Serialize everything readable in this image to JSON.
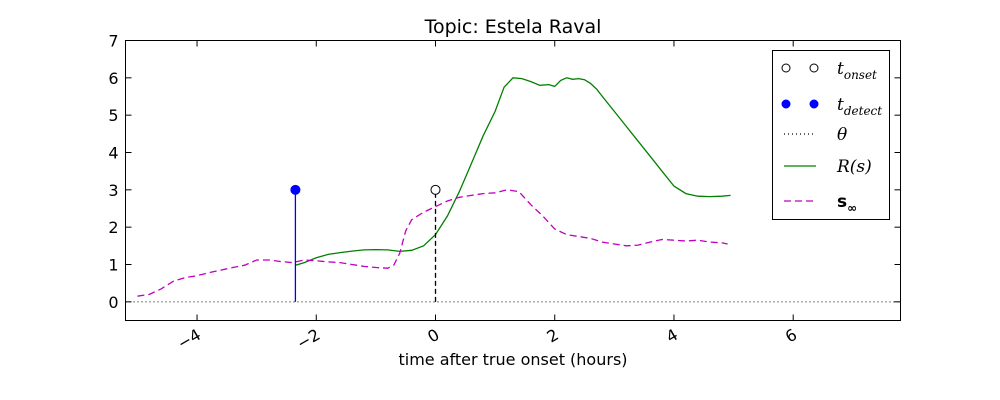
{
  "chart_data": {
    "type": "line",
    "title": "Topic: Estela Raval",
    "xlabel": "time after true onset (hours)",
    "ylabel": "",
    "xlim": [
      -5.2,
      7.8
    ],
    "ylim": [
      -0.5,
      7
    ],
    "xticks": [
      -4,
      -2,
      0,
      2,
      4,
      6
    ],
    "xtick_labels": [
      "−4",
      "−2",
      "0",
      "2",
      "4",
      "6"
    ],
    "yticks": [
      0,
      1,
      2,
      3,
      4,
      5,
      6,
      7
    ],
    "ytick_labels": [
      "0",
      "1",
      "2",
      "3",
      "4",
      "5",
      "6",
      "7"
    ],
    "grid": false,
    "legend_position": "upper-right",
    "legend": [
      {
        "key": "t_onset",
        "label": "t",
        "sub": "onset",
        "style": "open-circles"
      },
      {
        "key": "t_detect",
        "label": "t",
        "sub": "detect",
        "style": "filled-circles"
      },
      {
        "key": "theta",
        "label": "θ",
        "sub": "",
        "style": "dotted"
      },
      {
        "key": "R",
        "label": "R(s)",
        "sub": "",
        "style": "solid"
      },
      {
        "key": "s_inf",
        "label": "s",
        "sub": "∞",
        "style": "dashed"
      }
    ],
    "colors": {
      "t_onset": "#000000",
      "t_detect": "#0000ff",
      "theta": "#000000",
      "R": "#008000",
      "s_inf": "#bf00bf"
    },
    "threshold": 0,
    "t_onset": {
      "x": 0,
      "y": 3
    },
    "t_detect": {
      "x": -2.35,
      "y": 3
    },
    "series": [
      {
        "key": "R",
        "name": "R(s)",
        "x": [
          -2.35,
          -2.2,
          -2.0,
          -1.8,
          -1.6,
          -1.4,
          -1.2,
          -1.0,
          -0.8,
          -0.6,
          -0.4,
          -0.2,
          0.0,
          0.2,
          0.4,
          0.6,
          0.8,
          1.0,
          1.15,
          1.3,
          1.45,
          1.6,
          1.75,
          1.9,
          2.0,
          2.1,
          2.2,
          2.3,
          2.4,
          2.5,
          2.6,
          2.7,
          2.8,
          3.0,
          3.2,
          3.4,
          3.6,
          3.8,
          4.0,
          4.2,
          4.4,
          4.6,
          4.8,
          4.95
        ],
        "y": [
          0.98,
          1.05,
          1.18,
          1.27,
          1.32,
          1.36,
          1.39,
          1.4,
          1.39,
          1.35,
          1.38,
          1.5,
          1.8,
          2.3,
          2.95,
          3.7,
          4.45,
          5.1,
          5.75,
          6.0,
          5.98,
          5.9,
          5.8,
          5.82,
          5.77,
          5.93,
          6.0,
          5.96,
          5.98,
          5.95,
          5.85,
          5.7,
          5.5,
          5.1,
          4.7,
          4.3,
          3.9,
          3.5,
          3.1,
          2.9,
          2.83,
          2.82,
          2.83,
          2.85
        ]
      },
      {
        "key": "s_inf",
        "name": "s∞",
        "x": [
          -5.0,
          -4.8,
          -4.6,
          -4.4,
          -4.2,
          -4.0,
          -3.8,
          -3.6,
          -3.4,
          -3.2,
          -3.0,
          -2.8,
          -2.6,
          -2.4,
          -2.2,
          -2.0,
          -1.8,
          -1.6,
          -1.4,
          -1.2,
          -1.0,
          -0.8,
          -0.7,
          -0.6,
          -0.5,
          -0.4,
          -0.2,
          0.0,
          0.2,
          0.4,
          0.6,
          0.8,
          1.0,
          1.2,
          1.4,
          1.6,
          1.8,
          2.0,
          2.2,
          2.4,
          2.6,
          2.8,
          3.0,
          3.2,
          3.4,
          3.6,
          3.8,
          4.0,
          4.2,
          4.4,
          4.6,
          4.8,
          4.9
        ],
        "y": [
          0.15,
          0.2,
          0.35,
          0.55,
          0.65,
          0.7,
          0.78,
          0.85,
          0.92,
          0.98,
          1.12,
          1.12,
          1.08,
          1.05,
          1.12,
          1.1,
          1.07,
          1.05,
          1.0,
          0.95,
          0.92,
          0.9,
          0.98,
          1.3,
          1.9,
          2.2,
          2.4,
          2.55,
          2.7,
          2.8,
          2.85,
          2.9,
          2.92,
          3.0,
          2.95,
          2.6,
          2.3,
          1.95,
          1.8,
          1.75,
          1.7,
          1.6,
          1.55,
          1.5,
          1.52,
          1.6,
          1.67,
          1.65,
          1.63,
          1.65,
          1.6,
          1.58,
          1.55
        ]
      }
    ]
  }
}
